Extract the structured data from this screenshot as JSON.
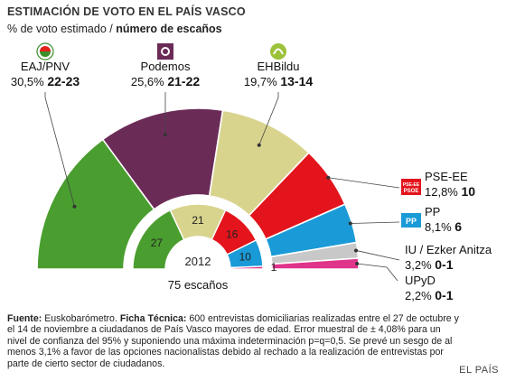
{
  "header": {
    "title": "ESTIMACIÓN DE VOTO EN EL PAÍS VASCO",
    "subtitle_regular": "% de voto estimado /",
    "subtitle_bold": "número de escaños"
  },
  "chart_data": {
    "type": "semicircle",
    "outer_title": "",
    "inner_year": "2012",
    "total_label": "75 escaños",
    "parties": [
      {
        "name": "EAJ/PNV",
        "pct_label": "30,5%",
        "seats_label": "22-23",
        "pct": 30.5,
        "seats_2012": 27,
        "color": "#4a9e2f",
        "logo": "pnv-logo"
      },
      {
        "name": "Podemos",
        "pct_label": "25,6%",
        "seats_label": "21-22",
        "pct": 25.6,
        "seats_2012": null,
        "color": "#6b2b57",
        "logo": "podemos-logo"
      },
      {
        "name": "EHBildu",
        "pct_label": "19,7%",
        "seats_label": "13-14",
        "pct": 19.7,
        "seats_2012": 21,
        "color": "#d8d48e",
        "logo": "bildu-logo"
      },
      {
        "name": "PSE-EE",
        "pct_label": "12,8%",
        "seats_label": "10",
        "pct": 12.8,
        "seats_2012": 16,
        "color": "#e3141c",
        "logo": "pse-logo"
      },
      {
        "name": "PP",
        "pct_label": "8,1%",
        "seats_label": "6",
        "pct": 8.1,
        "seats_2012": 10,
        "color": "#1a9ad6",
        "logo": "pp-logo"
      },
      {
        "name": "IU / Ezker Anitza",
        "pct_label": "3,2%",
        "seats_label": "0-1",
        "pct": 3.2,
        "seats_2012": null,
        "color": "#c8c8c8",
        "logo": null
      },
      {
        "name": "UPyD",
        "pct_label": "2,2%",
        "seats_label": "0-1",
        "pct": 2.2,
        "seats_2012": 1,
        "color": "#e0338a",
        "logo": null
      }
    ]
  },
  "footnote": {
    "source_label": "Fuente:",
    "source_text": "Euskobarómetro.",
    "tech_label": "Ficha Técnica:",
    "tech_text": "600 entrevistas domiciliarias realizadas entre el 27 de octubre y el 14 de noviembre a ciudadanos de País Vasco mayores de edad. Error muestral de ± 4,08% para un nivel de confianza del 95% y suponiendo una máxima indeterminación p=q=0,5. Se prevé un sesgo de al menos 3,1% a favor de las opciones nacionalistas debido al rechado a la realización de entrevistas por parte de cierto sector de ciudadanos."
  },
  "credit": "EL PAÍS"
}
